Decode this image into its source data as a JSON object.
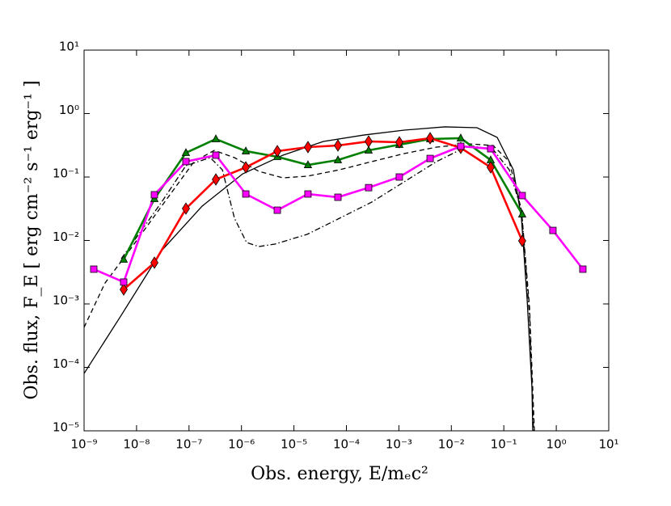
{
  "chart_data": {
    "type": "line",
    "xlabel": "Obs. energy, E/mₑc²",
    "ylabel": "Obs. flux, F_E [ erg cm⁻² s⁻¹ erg⁻¹ ]",
    "xscale": "log",
    "yscale": "log",
    "xlim": [
      1e-09,
      10
    ],
    "ylim": [
      1e-05,
      10
    ],
    "xticks": [
      {
        "value": 1e-09,
        "label": "10⁻⁹"
      },
      {
        "value": 1e-08,
        "label": "10⁻⁸"
      },
      {
        "value": 1e-07,
        "label": "10⁻⁷"
      },
      {
        "value": 1e-06,
        "label": "10⁻⁶"
      },
      {
        "value": 1e-05,
        "label": "10⁻⁵"
      },
      {
        "value": 0.0001,
        "label": "10⁻⁴"
      },
      {
        "value": 0.001,
        "label": "10⁻³"
      },
      {
        "value": 0.01,
        "label": "10⁻²"
      },
      {
        "value": 0.1,
        "label": "10⁻¹"
      },
      {
        "value": 1,
        "label": "10⁰"
      },
      {
        "value": 10,
        "label": "10¹"
      }
    ],
    "yticks": [
      {
        "value": 1e-05,
        "label": "10⁻⁵"
      },
      {
        "value": 0.0001,
        "label": "10⁻⁴"
      },
      {
        "value": 0.001,
        "label": "10⁻³"
      },
      {
        "value": 0.01,
        "label": "10⁻²"
      },
      {
        "value": 0.1,
        "label": "10⁻¹"
      },
      {
        "value": 1,
        "label": "10⁰"
      },
      {
        "value": 10,
        "label": "10¹"
      }
    ],
    "grid": false,
    "series": [
      {
        "color": "#000000",
        "style": "solid",
        "marker": "none",
        "x": [
          1e-09,
          5.12e-09,
          3.01e-08,
          1.78e-07,
          1.05e-06,
          6.17e-06,
          3.64e-05,
          0.000214,
          0.00126,
          0.00745,
          0.0308,
          0.0748,
          0.152,
          0.217,
          0.278,
          0.344,
          0.356
        ],
        "values": [
          8.02e-05,
          0.000664,
          0.00693,
          0.0348,
          0.112,
          0.221,
          0.364,
          0.459,
          0.548,
          0.617,
          0.598,
          0.421,
          0.13,
          0.0224,
          0.00119,
          4.73e-05,
          1e-05
        ]
      },
      {
        "color": "#000000",
        "style": "dashed",
        "marker": "none",
        "x": [
          1e-09,
          2.51e-09,
          7.29e-09,
          3.01e-08,
          1.25e-07,
          3.03e-07,
          7.35e-07,
          2.13e-06,
          6.17e-06,
          1.79e-05,
          7.4e-05,
          0.000305,
          0.00126,
          0.00522,
          0.0216,
          0.0625,
          0.127,
          0.217,
          0.309,
          0.382
        ],
        "values": [
          0.000428,
          0.00214,
          0.00693,
          0.0348,
          0.175,
          0.263,
          0.202,
          0.123,
          0.097,
          0.103,
          0.13,
          0.175,
          0.234,
          0.296,
          0.333,
          0.314,
          0.175,
          0.0301,
          0.000889,
          1e-05
        ]
      },
      {
        "color": "#000000",
        "style": "dashdot",
        "marker": "none",
        "x": [
          5.12e-09,
          3.01e-08,
          8.73e-08,
          2.54e-07,
          4.32e-07,
          7.35e-07,
          1.25e-06,
          2.13e-06,
          4.33e-06,
          1.79e-05,
          7.4e-05,
          0.000305,
          0.00126,
          0.00522,
          0.0216,
          0.0625,
          0.127,
          0.217,
          0.309,
          0.369
        ],
        "values": [
          0.00516,
          0.0403,
          0.151,
          0.202,
          0.13,
          0.0224,
          0.00929,
          0.00802,
          0.00877,
          0.0125,
          0.0224,
          0.0403,
          0.0839,
          0.175,
          0.314,
          0.271,
          0.13,
          0.0301,
          0.000664,
          1e-05
        ]
      },
      {
        "color": "#008000",
        "style": "solid",
        "marker": "triangle",
        "x": [
          5.69e-09,
          2.19e-08,
          8.73e-08,
          3.25e-07,
          1.21e-06,
          4.82e-06,
          1.85e-05,
          6.89e-05,
          0.000265,
          0.00102,
          0.00394,
          0.0151,
          0.0562,
          0.224
        ],
        "values": [
          0.00502,
          0.0453,
          0.241,
          0.397,
          0.256,
          0.208,
          0.155,
          0.185,
          0.263,
          0.323,
          0.397,
          0.409,
          0.185,
          0.0259
        ]
      },
      {
        "color": "#ff0000",
        "style": "solid",
        "marker": "diamond",
        "x": [
          5.69e-09,
          2.19e-08,
          8.73e-08,
          3.25e-07,
          1.21e-06,
          4.82e-06,
          1.85e-05,
          6.89e-05,
          0.000265,
          0.00102,
          0.00394,
          0.0151,
          0.0562,
          0.224
        ],
        "values": [
          0.00169,
          0.00447,
          0.0318,
          0.0916,
          0.142,
          0.256,
          0.296,
          0.314,
          0.364,
          0.353,
          0.409,
          0.288,
          0.142,
          0.00986
        ]
      },
      {
        "color": "#ff00ff",
        "style": "solid",
        "marker": "square",
        "x": [
          1.53e-09,
          5.69e-09,
          2.19e-08,
          8.73e-08,
          3.25e-07,
          1.21e-06,
          4.82e-06,
          1.85e-05,
          6.89e-05,
          0.000265,
          0.00102,
          0.00394,
          0.0151,
          0.0562,
          0.224,
          0.863,
          3.21
        ],
        "values": [
          0.00353,
          0.00221,
          0.0525,
          0.175,
          0.221,
          0.054,
          0.03,
          0.054,
          0.048,
          0.068,
          0.1,
          0.196,
          0.305,
          0.279,
          0.051,
          0.0144,
          0.00353
        ]
      }
    ]
  }
}
